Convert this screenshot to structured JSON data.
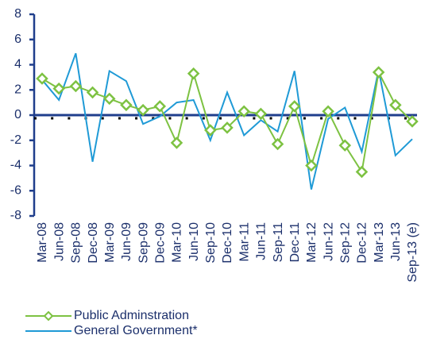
{
  "chart_data": {
    "type": "line",
    "categories": [
      "Mar-08",
      "Jun-08",
      "Sep-08",
      "Dec-08",
      "Mar-09",
      "Jun-09",
      "Sep-09",
      "Dec-09",
      "Mar-10",
      "Jun-10",
      "Sep-10",
      "Dec-10",
      "Mar-11",
      "Jun-11",
      "Sep-11",
      "Dec-11",
      "Mar-12",
      "Jun-12",
      "Sep-12",
      "Dec-12",
      "Mar-13",
      "Jun-13",
      "Sep-13 (e)"
    ],
    "series": [
      {
        "name": "Public Adminstration",
        "color": "#7dc242",
        "marker": "diamond",
        "values": [
          2.9,
          2.1,
          2.3,
          1.8,
          1.3,
          0.8,
          0.4,
          0.7,
          -2.2,
          3.3,
          -1.2,
          -1.0,
          0.3,
          0.1,
          -2.3,
          0.7,
          -4.0,
          0.3,
          -2.4,
          -4.5,
          3.4,
          0.8,
          -0.5
        ]
      },
      {
        "name": "General Government*",
        "color": "#1f9ad6",
        "values": [
          2.8,
          1.2,
          4.9,
          -3.7,
          3.5,
          2.7,
          -0.7,
          -0.1,
          1.0,
          1.2,
          -2.0,
          1.8,
          -1.6,
          -0.4,
          -1.3,
          3.5,
          -5.9,
          -0.3,
          0.6,
          -2.9,
          3.6,
          -3.2,
          -1.9
        ]
      }
    ],
    "ylim": [
      -8,
      8
    ],
    "yticks": [
      -8,
      -6,
      -4,
      -2,
      0,
      2,
      4,
      6,
      8
    ],
    "grid": false,
    "legend": "bottom-left"
  }
}
